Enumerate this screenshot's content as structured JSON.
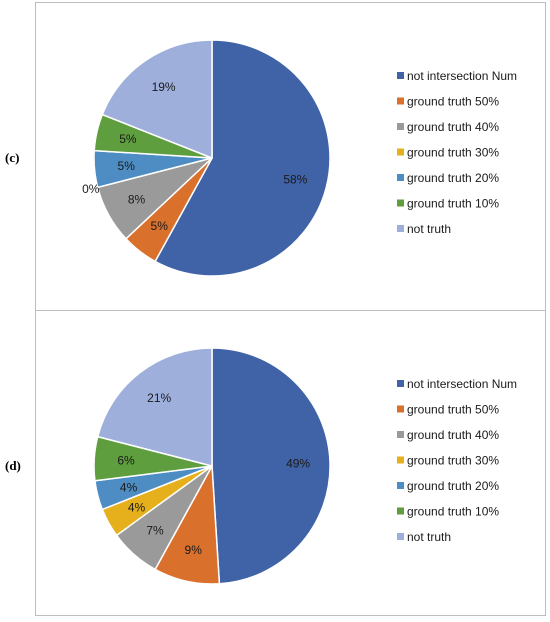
{
  "chart_data": [
    {
      "panel_label": "(c)",
      "type": "pie",
      "categories": [
        "not intersection Num",
        "ground truth 50%",
        "ground truth 40%",
        "ground truth 30%",
        "ground truth 20%",
        "ground truth 10%",
        "not truth"
      ],
      "values": [
        58,
        5,
        8,
        0,
        5,
        5,
        19
      ],
      "labels": [
        "58%",
        "5%",
        "8%",
        "0%",
        "5%",
        "5%",
        "19%"
      ],
      "colors": [
        "#4063a8",
        "#d9702c",
        "#9a9a9a",
        "#e6b01c",
        "#4e8dc4",
        "#5f9e3e",
        "#9eafdc"
      ],
      "legend_position": "right",
      "title": ""
    },
    {
      "panel_label": "(d)",
      "type": "pie",
      "categories": [
        "not intersection Num",
        "ground truth 50%",
        "ground truth 40%",
        "ground truth 30%",
        "ground truth 20%",
        "ground truth 10%",
        "not truth"
      ],
      "values": [
        49,
        9,
        7,
        4,
        4,
        6,
        21
      ],
      "labels": [
        "49%",
        "9%",
        "7%",
        "4%",
        "4%",
        "6%",
        "21%"
      ],
      "colors": [
        "#4063a8",
        "#d9702c",
        "#9a9a9a",
        "#e6b01c",
        "#4e8dc4",
        "#5f9e3e",
        "#9eafdc"
      ],
      "legend_position": "right",
      "title": ""
    }
  ]
}
